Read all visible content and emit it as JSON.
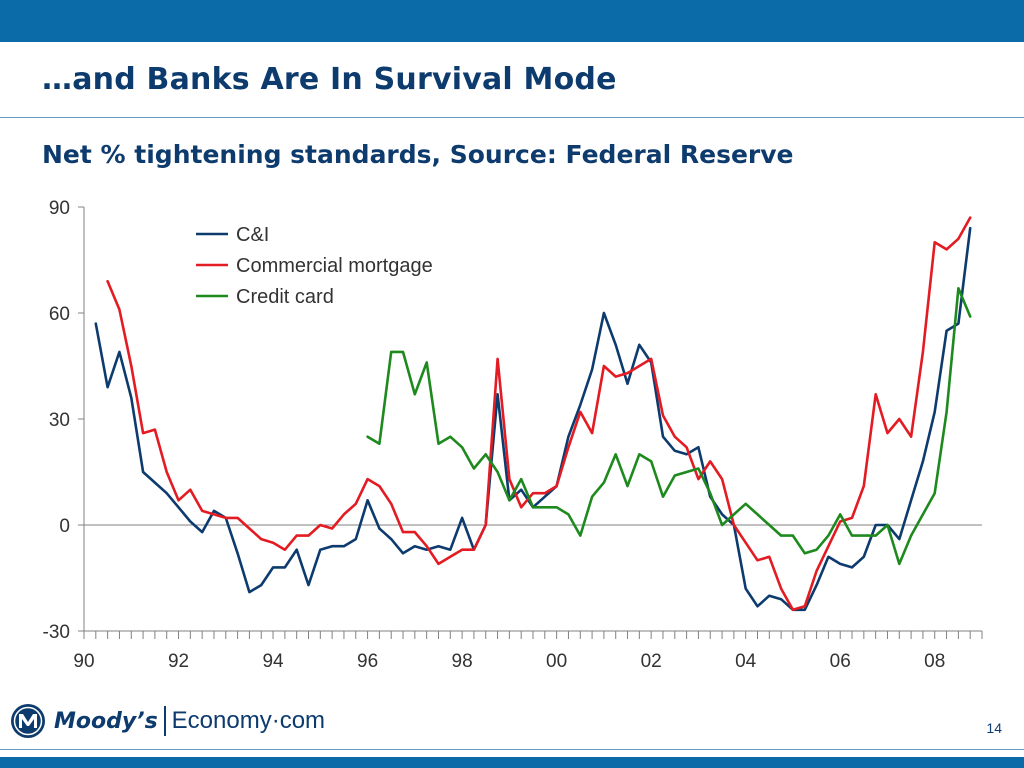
{
  "slide": {
    "title": "…and Banks Are In Survival Mode",
    "subtitle": "Net % tightening standards, Source: Federal Reserve",
    "page_number": "14",
    "logo_text_primary": "Moody’s",
    "logo_text_secondary": "Economy·com"
  },
  "colors": {
    "band": "#0b6aa8",
    "title": "#0d3b6e",
    "series_ci": "#0d3b6e",
    "series_commercial": "#e31b23",
    "series_credit": "#1e8a1e"
  },
  "chart_data": {
    "type": "line",
    "title": "",
    "xlabel": "",
    "ylabel": "",
    "xlim": [
      1990,
      2009
    ],
    "ylim": [
      -30,
      90
    ],
    "yticks": [
      -30,
      0,
      30,
      60,
      90
    ],
    "ytick_labels": [
      "-30",
      "0",
      "30",
      "60",
      "90"
    ],
    "xtick_positions": [
      1990,
      1992,
      1994,
      1996,
      1998,
      2000,
      2002,
      2004,
      2006,
      2008
    ],
    "xtick_labels": [
      "90",
      "92",
      "94",
      "96",
      "98",
      "00",
      "02",
      "04",
      "06",
      "08"
    ],
    "grid": false,
    "legend_position": "top-left",
    "series": [
      {
        "name": "C&I",
        "color": "#0d3b6e",
        "x": [
          1990.25,
          1990.5,
          1990.75,
          1991.0,
          1991.25,
          1991.5,
          1991.75,
          1992.0,
          1992.25,
          1992.5,
          1992.75,
          1993.0,
          1993.25,
          1993.5,
          1993.75,
          1994.0,
          1994.25,
          1994.5,
          1994.75,
          1995.0,
          1995.25,
          1995.5,
          1995.75,
          1996.0,
          1996.25,
          1996.5,
          1996.75,
          1997.0,
          1997.25,
          1997.5,
          1997.75,
          1998.0,
          1998.25,
          1998.5,
          1998.75,
          1999.0,
          1999.25,
          1999.5,
          1999.75,
          2000.0,
          2000.25,
          2000.5,
          2000.75,
          2001.0,
          2001.25,
          2001.5,
          2001.75,
          2002.0,
          2002.25,
          2002.5,
          2002.75,
          2003.0,
          2003.25,
          2003.5,
          2003.75,
          2004.0,
          2004.25,
          2004.5,
          2004.75,
          2005.0,
          2005.25,
          2005.5,
          2005.75,
          2006.0,
          2006.25,
          2006.5,
          2006.75,
          2007.0,
          2007.25,
          2007.5,
          2007.75,
          2008.0,
          2008.25,
          2008.5,
          2008.75
        ],
        "values": [
          57,
          39,
          49,
          36,
          15,
          12,
          9,
          5,
          1,
          -2,
          4,
          2,
          -8,
          -19,
          -17,
          -12,
          -12,
          -7,
          -17,
          -7,
          -6,
          -6,
          -4,
          7,
          -1,
          -4,
          -8,
          -6,
          -7,
          -6,
          -7,
          2,
          -7,
          0,
          37,
          7,
          10,
          5,
          8,
          11,
          25,
          34,
          44,
          60,
          51,
          40,
          51,
          46,
          25,
          21,
          20,
          22,
          8,
          3,
          0,
          -18,
          -23,
          -20,
          -21,
          -24,
          -24,
          -17,
          -9,
          -11,
          -12,
          -9,
          0,
          0,
          -4,
          7,
          18,
          32,
          55,
          57,
          84
        ]
      },
      {
        "name": "Commercial mortgage",
        "color": "#e31b23",
        "x": [
          1990.5,
          1990.75,
          1991.0,
          1991.25,
          1991.5,
          1991.75,
          1992.0,
          1992.25,
          1992.5,
          1992.75,
          1993.0,
          1993.25,
          1993.5,
          1993.75,
          1994.0,
          1994.25,
          1994.5,
          1994.75,
          1995.0,
          1995.25,
          1995.5,
          1995.75,
          1996.0,
          1996.25,
          1996.5,
          1996.75,
          1997.0,
          1997.25,
          1997.5,
          1997.75,
          1998.0,
          1998.25,
          1998.5,
          1998.75,
          1999.0,
          1999.25,
          1999.5,
          1999.75,
          2000.0,
          2000.25,
          2000.5,
          2000.75,
          2001.0,
          2001.25,
          2001.5,
          2001.75,
          2002.0,
          2002.25,
          2002.5,
          2002.75,
          2003.0,
          2003.25,
          2003.5,
          2003.75,
          2004.0,
          2004.25,
          2004.5,
          2004.75,
          2005.0,
          2005.25,
          2005.5,
          2005.75,
          2006.0,
          2006.25,
          2006.5,
          2006.75,
          2007.0,
          2007.25,
          2007.5,
          2007.75,
          2008.0,
          2008.25,
          2008.5,
          2008.75
        ],
        "values": [
          69,
          61,
          45,
          26,
          27,
          15,
          7,
          10,
          4,
          3,
          2,
          2,
          -1,
          -4,
          -5,
          -7,
          -3,
          -3,
          0,
          -1,
          3,
          6,
          13,
          11,
          6,
          -2,
          -2,
          -6,
          -11,
          -9,
          -7,
          -7,
          0,
          47,
          13,
          5,
          9,
          9,
          11,
          22,
          32,
          26,
          45,
          42,
          43,
          45,
          47,
          31,
          25,
          22,
          13,
          18,
          13,
          0,
          -5,
          -10,
          -9,
          -18,
          -24,
          -23,
          -13,
          -6,
          1,
          2,
          11,
          37,
          26,
          30,
          25,
          49,
          80,
          78,
          81,
          87
        ]
      },
      {
        "name": "Credit card",
        "color": "#1e8a1e",
        "x": [
          1996.0,
          1996.25,
          1996.5,
          1996.75,
          1997.0,
          1997.25,
          1997.5,
          1997.75,
          1998.0,
          1998.25,
          1998.5,
          1998.75,
          1999.0,
          1999.25,
          1999.5,
          1999.75,
          2000.0,
          2000.25,
          2000.5,
          2000.75,
          2001.0,
          2001.25,
          2001.5,
          2001.75,
          2002.0,
          2002.25,
          2002.5,
          2002.75,
          2003.0,
          2003.25,
          2003.5,
          2003.75,
          2004.0,
          2004.25,
          2004.5,
          2004.75,
          2005.0,
          2005.25,
          2005.5,
          2005.75,
          2006.0,
          2006.25,
          2006.5,
          2006.75,
          2007.0,
          2007.25,
          2007.5,
          2007.75,
          2008.0,
          2008.25,
          2008.5,
          2008.75
        ],
        "values": [
          25,
          23,
          49,
          49,
          37,
          46,
          23,
          25,
          22,
          16,
          20,
          15,
          7,
          13,
          5,
          5,
          5,
          3,
          -3,
          8,
          12,
          20,
          11,
          20,
          18,
          8,
          14,
          15,
          16,
          9,
          0,
          3,
          6,
          3,
          0,
          -3,
          -3,
          -8,
          -7,
          -3,
          3,
          -3,
          -3,
          -3,
          0,
          -11,
          -3,
          3,
          9,
          32,
          67,
          59
        ]
      }
    ]
  }
}
